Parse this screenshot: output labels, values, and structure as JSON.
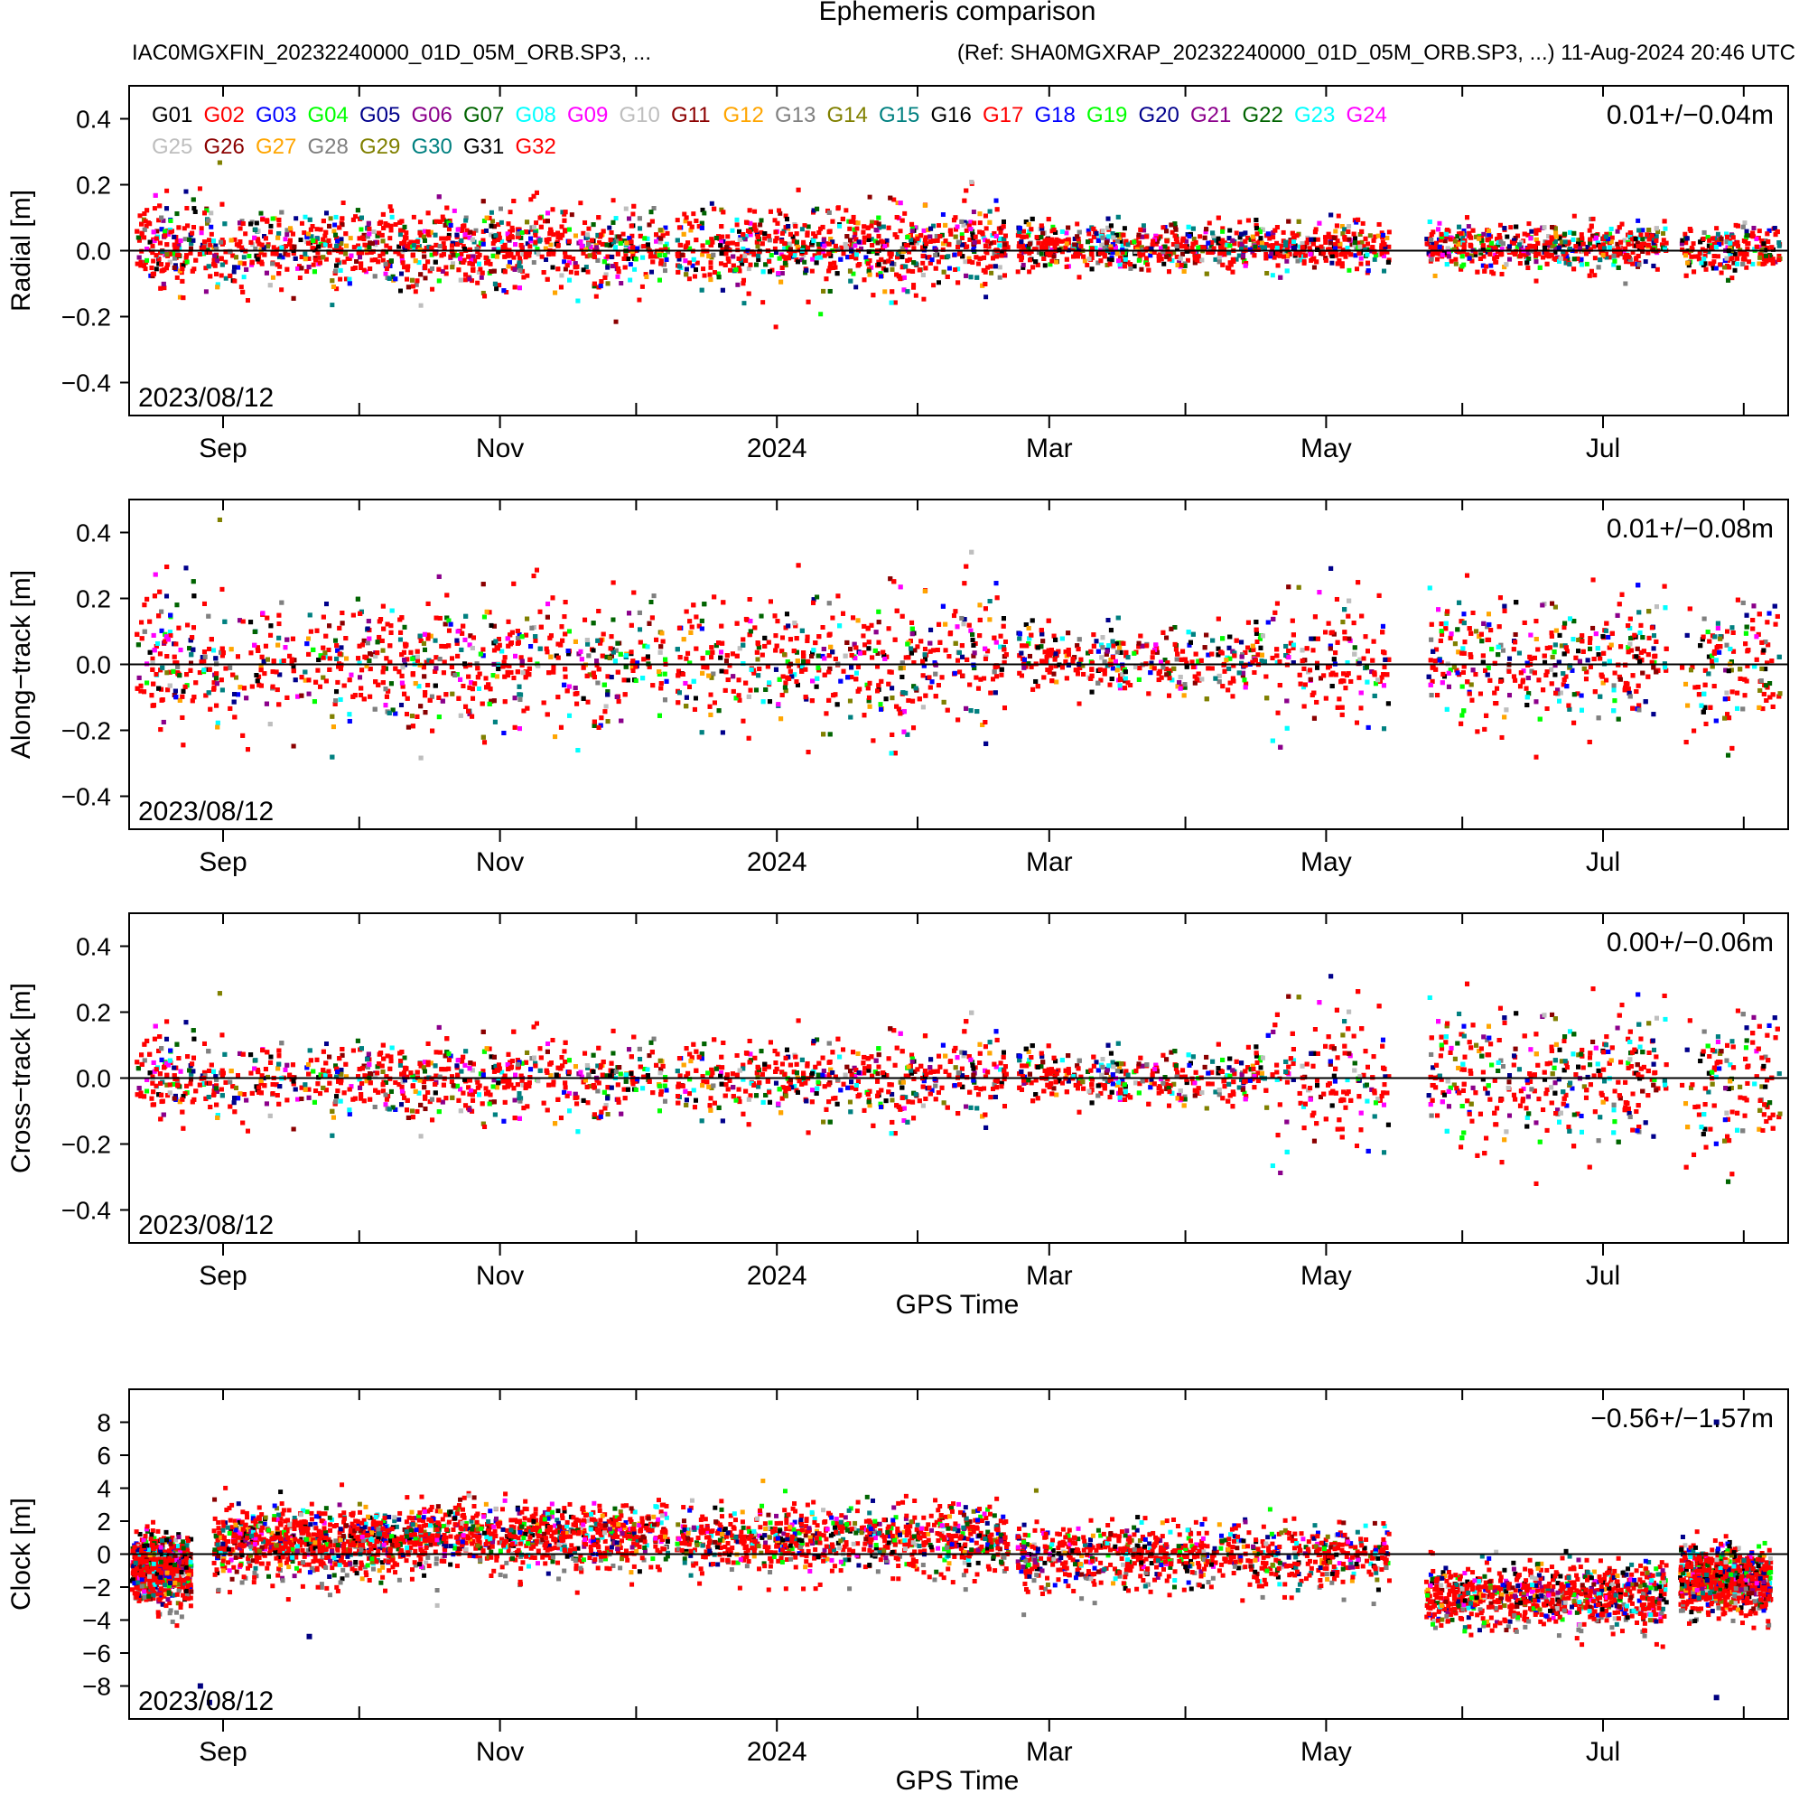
{
  "title": "Ephemeris comparison",
  "subtitle_left": "IAC0MGXFIN_20232240000_01D_05M_ORB.SP3, ...",
  "subtitle_right": "(Ref: SHA0MGXRAP_20232240000_01D_05M_ORB.SP3, ...) 11-Aug-2024 20:46 UTC",
  "start_date_label": "2023/08/12",
  "satellites": [
    {
      "name": "G01",
      "color": "#000000"
    },
    {
      "name": "G02",
      "color": "#ff0000"
    },
    {
      "name": "G03",
      "color": "#0000ff"
    },
    {
      "name": "G04",
      "color": "#00ff00"
    },
    {
      "name": "G05",
      "color": "#00008b"
    },
    {
      "name": "G06",
      "color": "#8b008b"
    },
    {
      "name": "G07",
      "color": "#006400"
    },
    {
      "name": "G08",
      "color": "#00ffff"
    },
    {
      "name": "G09",
      "color": "#ff00ff"
    },
    {
      "name": "G10",
      "color": "#bebebe"
    },
    {
      "name": "G11",
      "color": "#8b0000"
    },
    {
      "name": "G12",
      "color": "#ffa500"
    },
    {
      "name": "G13",
      "color": "#808080"
    },
    {
      "name": "G14",
      "color": "#808000"
    },
    {
      "name": "G15",
      "color": "#008080"
    },
    {
      "name": "G16",
      "color": "#000000"
    },
    {
      "name": "G17",
      "color": "#ff0000"
    },
    {
      "name": "G18",
      "color": "#0000ff"
    },
    {
      "name": "G19",
      "color": "#00ff00"
    },
    {
      "name": "G20",
      "color": "#00008b"
    },
    {
      "name": "G21",
      "color": "#8b008b"
    },
    {
      "name": "G22",
      "color": "#006400"
    },
    {
      "name": "G23",
      "color": "#00ffff"
    },
    {
      "name": "G24",
      "color": "#ff00ff"
    },
    {
      "name": "G25",
      "color": "#bebebe"
    },
    {
      "name": "G26",
      "color": "#8b0000"
    },
    {
      "name": "G27",
      "color": "#ffa500"
    },
    {
      "name": "G28",
      "color": "#808080"
    },
    {
      "name": "G29",
      "color": "#808000"
    },
    {
      "name": "G30",
      "color": "#008080"
    },
    {
      "name": "G31",
      "color": "#000000"
    },
    {
      "name": "G32",
      "color": "#ff0000"
    }
  ],
  "chart_data": [
    {
      "type": "scatter",
      "ylabel": "Radial [m]",
      "xlabel": "",
      "stat": "0.01+/−0.04m",
      "ylim": [
        -0.5,
        0.5
      ],
      "yticks": [
        -0.4,
        -0.2,
        0.0,
        0.2,
        0.4
      ],
      "ytick_labels": [
        "−0.4",
        "−0.2",
        "0.0",
        "0.2",
        "0.4"
      ],
      "xlim_days": [
        0,
        364
      ],
      "xtick_labels": [
        "Sep",
        "Nov",
        "2024",
        "Mar",
        "May",
        "Jul"
      ],
      "zero_line": 0,
      "data_gaps_days": [
        [
          118,
          120
        ],
        [
          193,
          195
        ],
        [
          277,
          285
        ],
        [
          338,
          341
        ]
      ],
      "spread": [
        {
          "from": 0,
          "to": 193,
          "sd": 0.06
        },
        {
          "from": 195,
          "to": 364,
          "sd": 0.035
        }
      ],
      "center": 0.01
    },
    {
      "type": "scatter",
      "ylabel": "Along−track [m]",
      "xlabel": "",
      "stat": "0.01+/−0.08m",
      "ylim": [
        -0.5,
        0.5
      ],
      "yticks": [
        -0.4,
        -0.2,
        0.0,
        0.2,
        0.4
      ],
      "ytick_labels": [
        "−0.4",
        "−0.2",
        "0.0",
        "0.2",
        "0.4"
      ],
      "xlim_days": [
        0,
        364
      ],
      "xtick_labels": [
        "Sep",
        "Nov",
        "2024",
        "Mar",
        "May",
        "Jul"
      ],
      "zero_line": 0,
      "data_gaps_days": [
        [
          118,
          120
        ],
        [
          193,
          195
        ],
        [
          277,
          285
        ],
        [
          338,
          341
        ]
      ],
      "spread": [
        {
          "from": 0,
          "to": 193,
          "sd": 0.1
        },
        {
          "from": 195,
          "to": 250,
          "sd": 0.05
        },
        {
          "from": 250,
          "to": 364,
          "sd": 0.1
        }
      ],
      "center": 0.01
    },
    {
      "type": "scatter",
      "ylabel": "Cross−track [m]",
      "xlabel": "GPS Time",
      "stat": "0.00+/−0.06m",
      "ylim": [
        -0.5,
        0.5
      ],
      "yticks": [
        -0.4,
        -0.2,
        0.0,
        0.2,
        0.4
      ],
      "ytick_labels": [
        "−0.4",
        "−0.2",
        "0.0",
        "0.2",
        "0.4"
      ],
      "xlim_days": [
        0,
        364
      ],
      "xtick_labels": [
        "Sep",
        "Nov",
        "2024",
        "Mar",
        "May",
        "Jul"
      ],
      "zero_line": 0,
      "data_gaps_days": [
        [
          118,
          120
        ],
        [
          193,
          195
        ],
        [
          277,
          285
        ],
        [
          338,
          341
        ]
      ],
      "spread": [
        {
          "from": 0,
          "to": 193,
          "sd": 0.06
        },
        {
          "from": 195,
          "to": 250,
          "sd": 0.04
        },
        {
          "from": 250,
          "to": 364,
          "sd": 0.11
        }
      ],
      "center": 0.0
    },
    {
      "type": "scatter",
      "ylabel": "Clock [m]",
      "xlabel": "GPS Time",
      "stat": "−0.56+/−1.57m",
      "ylim": [
        -10,
        10
      ],
      "yticks": [
        -8,
        -6,
        -4,
        -2,
        0,
        2,
        4,
        6,
        8
      ],
      "ytick_labels": [
        "−8",
        "−6",
        "−4",
        "−2",
        "0",
        "2",
        "4",
        "6",
        "8"
      ],
      "xlim_days": [
        0,
        364
      ],
      "xtick_labels": [
        "Sep",
        "Nov",
        "2024",
        "Mar",
        "May",
        "Jul"
      ],
      "zero_line": 0,
      "data_gaps_days": [
        [
          118,
          120
        ],
        [
          193,
          195
        ],
        [
          277,
          285
        ],
        [
          338,
          341
        ]
      ],
      "clock_segments": [
        {
          "from": 0,
          "to": 13,
          "level": -0.8
        },
        {
          "from": 18,
          "to": 60,
          "level": 0.8
        },
        {
          "from": 60,
          "to": 118,
          "level": 1.2
        },
        {
          "from": 120,
          "to": 193,
          "level": 1.0
        },
        {
          "from": 195,
          "to": 277,
          "level": 0.0
        },
        {
          "from": 285,
          "to": 338,
          "level": -2.5
        },
        {
          "from": 341,
          "to": 361,
          "level": -1.5
        }
      ],
      "outliers": [
        {
          "day": 15,
          "value": -8.0
        },
        {
          "day": 17,
          "value": -9.0
        },
        {
          "day": 39,
          "value": -5.0
        },
        {
          "day": 349,
          "value": -8.7
        },
        {
          "day": 349,
          "value": 8.0
        }
      ]
    }
  ]
}
